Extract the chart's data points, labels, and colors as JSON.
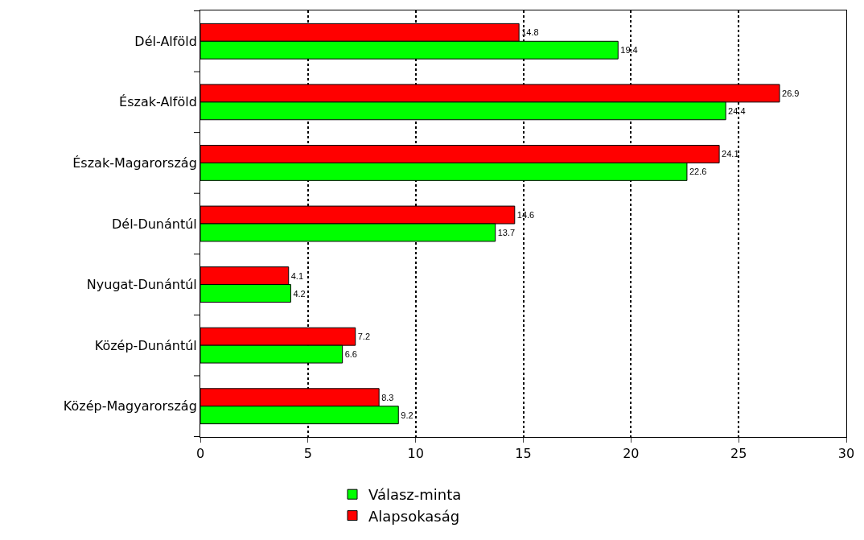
{
  "chart_data": {
    "type": "bar",
    "orientation": "horizontal",
    "categories": [
      "Dél-Alföld",
      "Észak-Alföld",
      "Észak-Magarország",
      "Dél-Dunántúl",
      "Nyugat-Dunántúl",
      "Közép-Dunántúl",
      "Közép-Magyarország"
    ],
    "series": [
      {
        "name": "Alapsokaság",
        "color": "#ff0000",
        "values": [
          14.8,
          26.9,
          24.1,
          14.6,
          4.1,
          7.2,
          8.3
        ]
      },
      {
        "name": "Válasz-minta",
        "color": "#00ff00",
        "values": [
          19.4,
          24.4,
          22.6,
          13.7,
          4.2,
          6.6,
          9.2
        ]
      }
    ],
    "xlim": [
      0,
      30
    ],
    "xticks": [
      0,
      5,
      10,
      15,
      20,
      25,
      30
    ],
    "grid": "x",
    "legend": "bottom",
    "data_labels": true
  }
}
